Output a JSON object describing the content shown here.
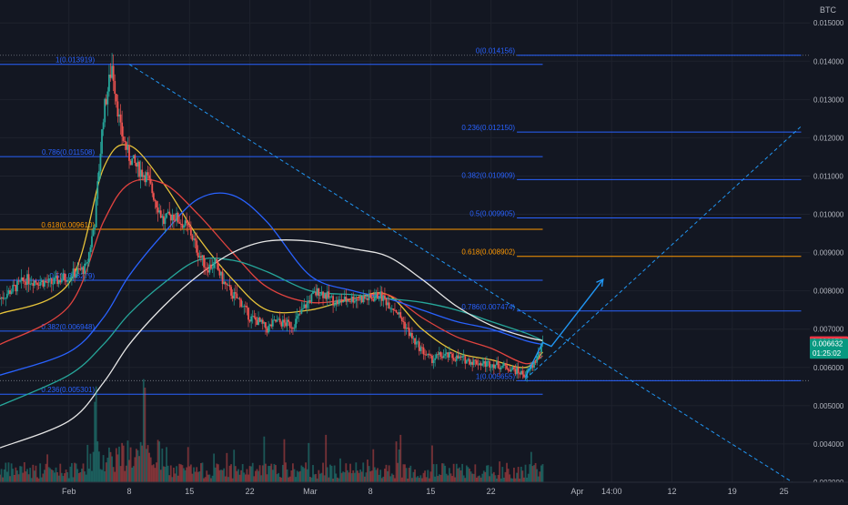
{
  "colors": {
    "background": "#131722",
    "grid": "#1e222d",
    "up": "#26a69a",
    "down": "#ef5350",
    "fib_blue": "#2962ff",
    "fib_orange": "#ff9800",
    "ma_yellow": "#e5c23a",
    "ma_red": "#e0433f",
    "ma_blue": "#2962ff",
    "ma_teal": "#26a69a",
    "ma_white": "#e6e6e6",
    "trend": "#2196f3",
    "axis_text": "#b2b5be"
  },
  "chart_data": {
    "type": "candlestick",
    "symbol": "BTC",
    "y_scale": "linear",
    "ylim": [
      0.003,
      0.0156
    ],
    "y_ticks": [
      "0.015000",
      "0.014000",
      "0.013000",
      "0.012000",
      "0.011000",
      "0.010000",
      "0.009000",
      "0.008000",
      "0.007000",
      "0.006000",
      "0.005000",
      "0.004000",
      "0.003000"
    ],
    "y_tick_values": [
      0.015,
      0.014,
      0.013,
      0.012,
      0.011,
      0.01,
      0.009,
      0.008,
      0.007,
      0.006,
      0.005,
      0.004,
      0.003
    ],
    "x_ticks": [
      "Feb",
      "8",
      "15",
      "22",
      "Mar",
      "8",
      "15",
      "22",
      "Apr",
      "14:00",
      "12",
      "19",
      "25"
    ],
    "x_tick_dates": [
      "2021-02-01",
      "2021-02-08",
      "2021-02-15",
      "2021-02-22",
      "2021-03-01",
      "2021-03-08",
      "2021-03-15",
      "2021-03-22",
      "2021-04-01",
      "2021-04-05",
      "2021-04-12",
      "2021-04-19",
      "2021-04-25"
    ],
    "price_labels": [
      {
        "text": "0.006670",
        "value": 0.00667,
        "color": "#f23645"
      },
      {
        "text": "0.006632",
        "value": 0.006632,
        "color": "#089981",
        "countdown": "01:25:02"
      }
    ],
    "price_path": {
      "dates": [
        "2021-01-24",
        "2021-01-27",
        "2021-01-30",
        "2021-02-01",
        "2021-02-03",
        "2021-02-04",
        "2021-02-05",
        "2021-02-06",
        "2021-02-07",
        "2021-02-08",
        "2021-02-09",
        "2021-02-10",
        "2021-02-11",
        "2021-02-12",
        "2021-02-13",
        "2021-02-15",
        "2021-02-16",
        "2021-02-17",
        "2021-02-18",
        "2021-02-19",
        "2021-02-20",
        "2021-02-21",
        "2021-02-22",
        "2021-02-23",
        "2021-02-24",
        "2021-02-25",
        "2021-02-27",
        "2021-03-01",
        "2021-03-02",
        "2021-03-04",
        "2021-03-06",
        "2021-03-08",
        "2021-03-09",
        "2021-03-11",
        "2021-03-13",
        "2021-03-15",
        "2021-03-16",
        "2021-03-17",
        "2021-03-19",
        "2021-03-21",
        "2021-03-22",
        "2021-03-24",
        "2021-03-26",
        "2021-03-27",
        "2021-03-28"
      ],
      "values": [
        0.0078,
        0.0083,
        0.0082,
        0.0084,
        0.0086,
        0.0098,
        0.0126,
        0.0139,
        0.0122,
        0.0115,
        0.0112,
        0.011,
        0.0104,
        0.0098,
        0.01,
        0.0096,
        0.009,
        0.0086,
        0.0087,
        0.0082,
        0.0079,
        0.0077,
        0.0073,
        0.0072,
        0.007,
        0.0072,
        0.0071,
        0.0078,
        0.008,
        0.0077,
        0.0078,
        0.0078,
        0.0079,
        0.0075,
        0.0067,
        0.0062,
        0.0063,
        0.0063,
        0.0062,
        0.0061,
        0.0061,
        0.006,
        0.0058,
        0.0061,
        0.0066
      ]
    },
    "moving_averages": [
      {
        "color": "#e5c23a",
        "dates": [
          "2021-01-24",
          "2021-02-01",
          "2021-02-05",
          "2021-02-08",
          "2021-02-12",
          "2021-02-16",
          "2021-02-20",
          "2021-02-24",
          "2021-03-01",
          "2021-03-06",
          "2021-03-10",
          "2021-03-14",
          "2021-03-18",
          "2021-03-22",
          "2021-03-26",
          "2021-03-28"
        ],
        "values": [
          0.0074,
          0.0082,
          0.0112,
          0.0118,
          0.0108,
          0.0094,
          0.0083,
          0.0075,
          0.0075,
          0.0078,
          0.0079,
          0.007,
          0.0064,
          0.0062,
          0.006,
          0.0064
        ]
      },
      {
        "color": "#e0433f",
        "dates": [
          "2021-01-24",
          "2021-02-01",
          "2021-02-05",
          "2021-02-08",
          "2021-02-12",
          "2021-02-16",
          "2021-02-20",
          "2021-02-24",
          "2021-03-01",
          "2021-03-06",
          "2021-03-10",
          "2021-03-14",
          "2021-03-18",
          "2021-03-22",
          "2021-03-26",
          "2021-03-28"
        ],
        "values": [
          0.0066,
          0.0076,
          0.0098,
          0.0108,
          0.0108,
          0.01,
          0.009,
          0.0081,
          0.0077,
          0.0078,
          0.0079,
          0.0073,
          0.0068,
          0.0065,
          0.0061,
          0.0063
        ]
      },
      {
        "color": "#2962ff",
        "dates": [
          "2021-01-24",
          "2021-02-01",
          "2021-02-05",
          "2021-02-08",
          "2021-02-12",
          "2021-02-16",
          "2021-02-20",
          "2021-02-24",
          "2021-03-01",
          "2021-03-06",
          "2021-03-10",
          "2021-03-14",
          "2021-03-18",
          "2021-03-22",
          "2021-03-26",
          "2021-03-28"
        ],
        "values": [
          0.0058,
          0.0064,
          0.0073,
          0.0084,
          0.0095,
          0.0104,
          0.0105,
          0.0098,
          0.0084,
          0.008,
          0.0078,
          0.0075,
          0.0072,
          0.007,
          0.0067,
          0.0066
        ]
      },
      {
        "color": "#26a69a",
        "dates": [
          "2021-01-24",
          "2021-02-01",
          "2021-02-05",
          "2021-02-08",
          "2021-02-12",
          "2021-02-16",
          "2021-02-20",
          "2021-02-24",
          "2021-03-01",
          "2021-03-06",
          "2021-03-10",
          "2021-03-14",
          "2021-03-18",
          "2021-03-22",
          "2021-03-26",
          "2021-03-28"
        ],
        "values": [
          0.005,
          0.0058,
          0.0066,
          0.0074,
          0.0082,
          0.0088,
          0.0088,
          0.0085,
          0.008,
          0.0079,
          0.0078,
          0.0077,
          0.0075,
          0.0072,
          0.0069,
          0.0067
        ]
      },
      {
        "color": "#e6e6e6",
        "dates": [
          "2021-01-24",
          "2021-02-01",
          "2021-02-05",
          "2021-02-08",
          "2021-02-12",
          "2021-02-16",
          "2021-02-20",
          "2021-02-24",
          "2021-03-01",
          "2021-03-06",
          "2021-03-10",
          "2021-03-14",
          "2021-03-18",
          "2021-03-22",
          "2021-03-26",
          "2021-03-28"
        ],
        "values": [
          0.0039,
          0.0046,
          0.0056,
          0.0066,
          0.0076,
          0.0084,
          0.009,
          0.0093,
          0.0093,
          0.0091,
          0.0089,
          0.0083,
          0.0076,
          0.0071,
          0.0068,
          0.0067
        ]
      }
    ],
    "fib_left": {
      "start_date": "2021-01-24",
      "end_date": "2021-03-28",
      "levels": [
        {
          "label": "1(0.013919)",
          "value": 0.013919,
          "color": "#2962ff",
          "label_date": "2021-02-04"
        },
        {
          "label": "0.786(0.011508)",
          "value": 0.011508,
          "color": "#2962ff",
          "label_date": "2021-02-04"
        },
        {
          "label": "0.618(0.009610)",
          "value": 0.00961,
          "color": "#ff9800",
          "label_date": "2021-02-04"
        },
        {
          "label": "0.5(0.008279)",
          "value": 0.008279,
          "color": "#2962ff",
          "label_date": "2021-02-04"
        },
        {
          "label": "0.382(0.006948)",
          "value": 0.006948,
          "color": "#2962ff",
          "label_date": "2021-02-04"
        },
        {
          "label": "0.236(0.005301)",
          "value": 0.005301,
          "color": "#2962ff",
          "label_date": "2021-02-04"
        }
      ]
    },
    "fib_right": {
      "start_date": "2021-03-25",
      "end_date": "2021-04-27",
      "levels": [
        {
          "label": "0(0.014156)",
          "value": 0.014156,
          "color": "#2962ff"
        },
        {
          "label": "0.236(0.012150)",
          "value": 0.01215,
          "color": "#2962ff"
        },
        {
          "label": "0.382(0.010909)",
          "value": 0.010909,
          "color": "#2962ff"
        },
        {
          "label": "0.5(0.009905)",
          "value": 0.009905,
          "color": "#2962ff"
        },
        {
          "label": "0.618(0.008902)",
          "value": 0.008902,
          "color": "#ff9800"
        },
        {
          "label": "0.786(0.007474)",
          "value": 0.007474,
          "color": "#2962ff"
        },
        {
          "label": "1(0.005655)",
          "value": 0.005655,
          "color": "#2962ff"
        }
      ]
    },
    "dotted_levels": [
      0.014156,
      0.005655
    ],
    "trendlines": [
      {
        "style": "dashed",
        "from": {
          "date": "2021-02-08",
          "value": 0.01392
        },
        "to": {
          "date": "2021-04-26",
          "value": 0.003
        }
      },
      {
        "style": "dashed",
        "from": {
          "date": "2021-03-26",
          "value": 0.0057
        },
        "to": {
          "date": "2021-04-27",
          "value": 0.0123
        }
      }
    ],
    "projection_arrow": {
      "points": [
        {
          "date": "2021-03-26",
          "value": 0.00575
        },
        {
          "date": "2021-03-28",
          "value": 0.00665
        },
        {
          "date": "2021-03-29",
          "value": 0.00655
        },
        {
          "date": "2021-04-04",
          "value": 0.0083
        }
      ]
    }
  }
}
